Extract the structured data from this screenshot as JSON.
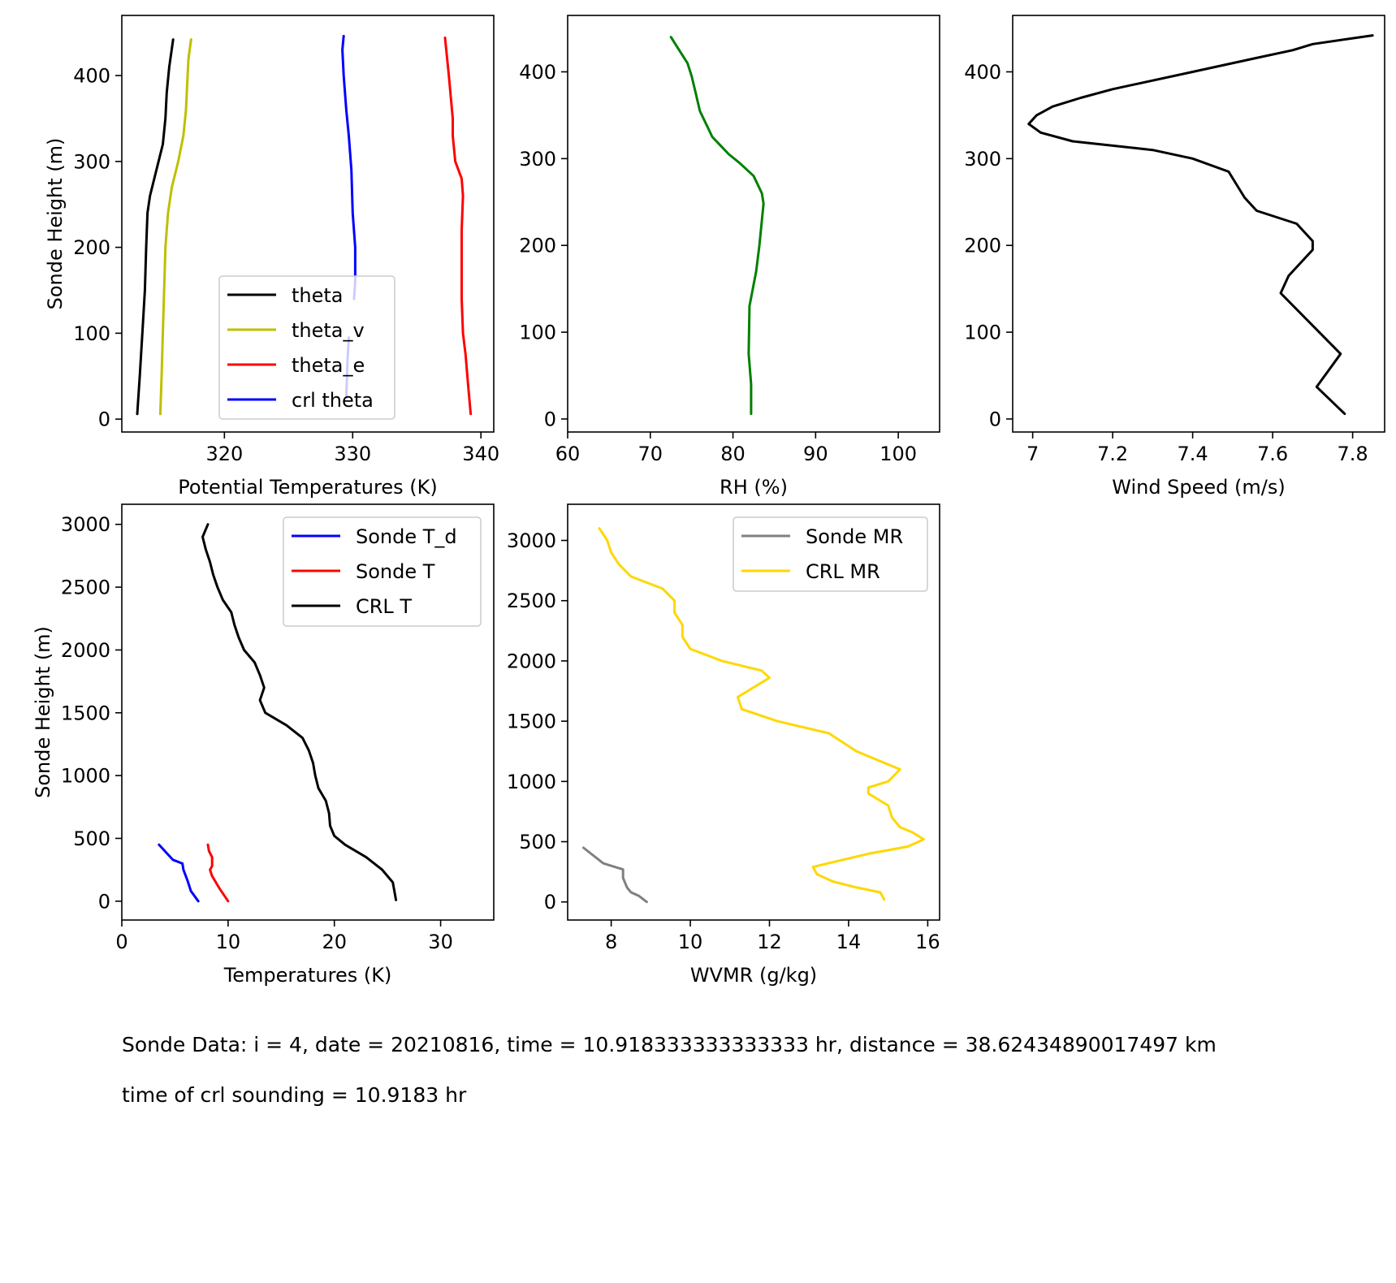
{
  "figure_captions": {
    "sonde_info": "Sonde Data: i = 4, date = 20210816, time = 10.918333333333333 hr, distance = 38.62434890017497 km",
    "crl_time": "time of crl sounding = 10.9183 hr"
  },
  "chart_data": [
    {
      "id": "potential-temperature",
      "type": "line",
      "title": "",
      "xlabel": "Potential Temperatures (K)",
      "ylabel": "Sonde Height (m)",
      "xlim": [
        312,
        341
      ],
      "ylim": [
        -15,
        470
      ],
      "xticks": [
        320,
        330,
        340
      ],
      "yticks": [
        0,
        100,
        200,
        300,
        400
      ],
      "grid": false,
      "legend": {
        "location": "lower center",
        "entries": [
          "theta",
          "theta_v",
          "theta_e",
          "crl theta"
        ]
      },
      "series": [
        {
          "name": "theta",
          "color": "#000000",
          "points": [
            [
              313.2,
              6
            ],
            [
              313.4,
              50
            ],
            [
              313.6,
              100
            ],
            [
              313.8,
              150
            ],
            [
              313.9,
              200
            ],
            [
              314.0,
              240
            ],
            [
              314.2,
              260
            ],
            [
              314.7,
              290
            ],
            [
              315.2,
              320
            ],
            [
              315.4,
              350
            ],
            [
              315.5,
              380
            ],
            [
              315.7,
              410
            ],
            [
              316.0,
              442
            ]
          ]
        },
        {
          "name": "theta_v",
          "color": "#bfbf00",
          "points": [
            [
              315.0,
              6
            ],
            [
              315.1,
              50
            ],
            [
              315.2,
              100
            ],
            [
              315.3,
              150
            ],
            [
              315.4,
              200
            ],
            [
              315.6,
              240
            ],
            [
              315.9,
              270
            ],
            [
              316.4,
              300
            ],
            [
              316.8,
              330
            ],
            [
              317.0,
              360
            ],
            [
              317.1,
              390
            ],
            [
              317.2,
              420
            ],
            [
              317.4,
              442
            ]
          ]
        },
        {
          "name": "theta_e",
          "color": "#ff0000",
          "points": [
            [
              339.2,
              6
            ],
            [
              339.0,
              40
            ],
            [
              338.8,
              75
            ],
            [
              338.6,
              100
            ],
            [
              338.5,
              140
            ],
            [
              338.5,
              180
            ],
            [
              338.5,
              220
            ],
            [
              338.6,
              260
            ],
            [
              338.5,
              280
            ],
            [
              338.0,
              300
            ],
            [
              337.8,
              330
            ],
            [
              337.8,
              350
            ],
            [
              337.5,
              400
            ],
            [
              337.2,
              444
            ]
          ]
        },
        {
          "name": "crl theta",
          "color": "#0000ff",
          "points": [
            [
              329.5,
              25
            ],
            [
              329.6,
              70
            ],
            [
              329.7,
              95
            ]
          ],
          "points_segment_2": [
            [
              330.1,
              140
            ],
            [
              330.2,
              160
            ],
            [
              330.2,
              200
            ],
            [
              330.0,
              240
            ],
            [
              329.9,
              290
            ],
            [
              329.7,
              330
            ],
            [
              329.5,
              360
            ],
            [
              329.3,
              400
            ],
            [
              329.2,
              430
            ],
            [
              329.3,
              446
            ]
          ]
        }
      ]
    },
    {
      "id": "relative-humidity",
      "type": "line",
      "title": "",
      "xlabel": "RH (%)",
      "ylabel": "",
      "xlim": [
        60,
        105
      ],
      "ylim": [
        -15,
        465
      ],
      "xticks": [
        60,
        70,
        80,
        90,
        100
      ],
      "yticks": [
        0,
        100,
        200,
        300,
        400
      ],
      "grid": false,
      "series": [
        {
          "name": "",
          "color": "#008000",
          "points": [
            [
              82.2,
              6
            ],
            [
              82.2,
              40
            ],
            [
              81.9,
              75
            ],
            [
              82.0,
              130
            ],
            [
              82.8,
              170
            ],
            [
              83.2,
              200
            ],
            [
              83.7,
              248
            ],
            [
              83.5,
              260
            ],
            [
              82.5,
              280
            ],
            [
              80.8,
              295
            ],
            [
              79.5,
              305
            ],
            [
              78.5,
              315
            ],
            [
              77.5,
              325
            ],
            [
              77.0,
              335
            ],
            [
              76.5,
              345
            ],
            [
              76.0,
              355
            ],
            [
              75.5,
              375
            ],
            [
              75.0,
              395
            ],
            [
              74.5,
              410
            ],
            [
              73.5,
              425
            ],
            [
              72.5,
              440
            ]
          ]
        }
      ]
    },
    {
      "id": "wind-speed",
      "type": "line",
      "title": "",
      "xlabel": "Wind Speed (m/s)",
      "ylabel": "",
      "xlim": [
        6.95,
        7.88
      ],
      "ylim": [
        -15,
        465
      ],
      "xticks": [
        7.0,
        7.2,
        7.4,
        7.6,
        7.8
      ],
      "yticks": [
        0,
        100,
        200,
        300,
        400
      ],
      "grid": false,
      "series": [
        {
          "name": "",
          "color": "#000000",
          "points": [
            [
              7.78,
              6
            ],
            [
              7.71,
              37
            ],
            [
              7.77,
              75
            ],
            [
              7.62,
              145
            ],
            [
              7.64,
              165
            ],
            [
              7.7,
              195
            ],
            [
              7.7,
              205
            ],
            [
              7.66,
              225
            ],
            [
              7.56,
              240
            ],
            [
              7.53,
              255
            ],
            [
              7.49,
              285
            ],
            [
              7.4,
              300
            ],
            [
              7.3,
              310
            ],
            [
              7.1,
              320
            ],
            [
              7.02,
              330
            ],
            [
              6.99,
              340
            ],
            [
              7.01,
              350
            ],
            [
              7.05,
              360
            ],
            [
              7.12,
              370
            ],
            [
              7.2,
              380
            ],
            [
              7.4,
              400
            ],
            [
              7.55,
              415
            ],
            [
              7.65,
              425
            ],
            [
              7.7,
              432
            ],
            [
              7.85,
              442
            ]
          ]
        }
      ]
    },
    {
      "id": "temperature",
      "type": "line",
      "title": "",
      "xlabel": "Temperatures (K)",
      "ylabel": "Sonde Height (m)",
      "xlim": [
        0,
        35
      ],
      "ylim": [
        -150,
        3160
      ],
      "xticks": [
        0,
        10,
        20,
        30
      ],
      "yticks": [
        0,
        500,
        1000,
        1500,
        2000,
        2500,
        3000
      ],
      "grid": false,
      "legend": {
        "location": "upper right",
        "entries": [
          "Sonde T_d",
          "Sonde T",
          "CRL T"
        ]
      },
      "series": [
        {
          "name": "Sonde T_d",
          "color": "#0000ff",
          "points": [
            [
              7.2,
              0
            ],
            [
              6.5,
              80
            ],
            [
              6.2,
              160
            ],
            [
              5.8,
              250
            ],
            [
              5.7,
              300
            ],
            [
              4.8,
              330
            ],
            [
              3.5,
              450
            ]
          ]
        },
        {
          "name": "Sonde T",
          "color": "#ff0000",
          "points": [
            [
              10.0,
              0
            ],
            [
              9.2,
              100
            ],
            [
              8.5,
              200
            ],
            [
              8.3,
              250
            ],
            [
              8.5,
              280
            ],
            [
              8.5,
              350
            ],
            [
              8.2,
              400
            ],
            [
              8.1,
              450
            ]
          ]
        },
        {
          "name": "CRL T",
          "color": "#000000",
          "points": [
            [
              25.8,
              10
            ],
            [
              25.5,
              150
            ],
            [
              24.5,
              250
            ],
            [
              23.0,
              350
            ],
            [
              21.0,
              450
            ],
            [
              20.0,
              520
            ],
            [
              19.6,
              600
            ],
            [
              19.5,
              700
            ],
            [
              19.2,
              800
            ],
            [
              18.5,
              900
            ],
            [
              18.2,
              1000
            ],
            [
              18.0,
              1100
            ],
            [
              17.6,
              1200
            ],
            [
              17.0,
              1300
            ],
            [
              15.5,
              1400
            ],
            [
              13.5,
              1500
            ],
            [
              13.0,
              1600
            ],
            [
              13.4,
              1700
            ],
            [
              13.0,
              1800
            ],
            [
              12.5,
              1900
            ],
            [
              11.5,
              2000
            ],
            [
              11.0,
              2100
            ],
            [
              10.6,
              2200
            ],
            [
              10.3,
              2300
            ],
            [
              9.5,
              2400
            ],
            [
              9.0,
              2500
            ],
            [
              8.6,
              2600
            ],
            [
              8.3,
              2700
            ],
            [
              7.9,
              2800
            ],
            [
              7.6,
              2900
            ],
            [
              8.1,
              3000
            ]
          ]
        }
      ]
    },
    {
      "id": "water-vapor-mixing-ratio",
      "type": "line",
      "title": "",
      "xlabel": "WVMR (g/kg)",
      "ylabel": "",
      "xlim": [
        6.9,
        16.3
      ],
      "ylim": [
        -150,
        3300
      ],
      "xticks": [
        8,
        10,
        12,
        14,
        16
      ],
      "yticks": [
        0,
        500,
        1000,
        1500,
        2000,
        2500,
        3000
      ],
      "grid": false,
      "legend": {
        "location": "upper right",
        "entries": [
          "Sonde MR",
          "CRL MR"
        ]
      },
      "series": [
        {
          "name": "Sonde MR",
          "color": "#808080",
          "points": [
            [
              8.9,
              0
            ],
            [
              8.7,
              50
            ],
            [
              8.5,
              80
            ],
            [
              8.4,
              120
            ],
            [
              8.3,
              200
            ],
            [
              8.3,
              270
            ],
            [
              7.8,
              320
            ],
            [
              7.3,
              450
            ]
          ]
        },
        {
          "name": "CRL MR",
          "color": "#ffd700",
          "points": [
            [
              14.9,
              20
            ],
            [
              14.8,
              80
            ],
            [
              14.2,
              120
            ],
            [
              13.6,
              170
            ],
            [
              13.2,
              230
            ],
            [
              13.1,
              290
            ],
            [
              13.6,
              330
            ],
            [
              14.5,
              400
            ],
            [
              15.5,
              460
            ],
            [
              15.9,
              520
            ],
            [
              15.6,
              580
            ],
            [
              15.3,
              620
            ],
            [
              15.1,
              700
            ],
            [
              15.0,
              800
            ],
            [
              14.5,
              900
            ],
            [
              14.5,
              950
            ],
            [
              15.0,
              1000
            ],
            [
              15.3,
              1100
            ],
            [
              14.2,
              1250
            ],
            [
              13.5,
              1400
            ],
            [
              12.2,
              1500
            ],
            [
              11.3,
              1600
            ],
            [
              11.2,
              1700
            ],
            [
              11.5,
              1760
            ],
            [
              12.0,
              1860
            ],
            [
              11.8,
              1920
            ],
            [
              10.8,
              2000
            ],
            [
              10.0,
              2100
            ],
            [
              9.8,
              2200
            ],
            [
              9.8,
              2300
            ],
            [
              9.6,
              2400
            ],
            [
              9.6,
              2500
            ],
            [
              9.3,
              2600
            ],
            [
              8.5,
              2700
            ],
            [
              8.2,
              2800
            ],
            [
              8.0,
              2900
            ],
            [
              7.9,
              3000
            ],
            [
              7.8,
              3050
            ],
            [
              7.7,
              3100
            ]
          ]
        }
      ]
    }
  ]
}
